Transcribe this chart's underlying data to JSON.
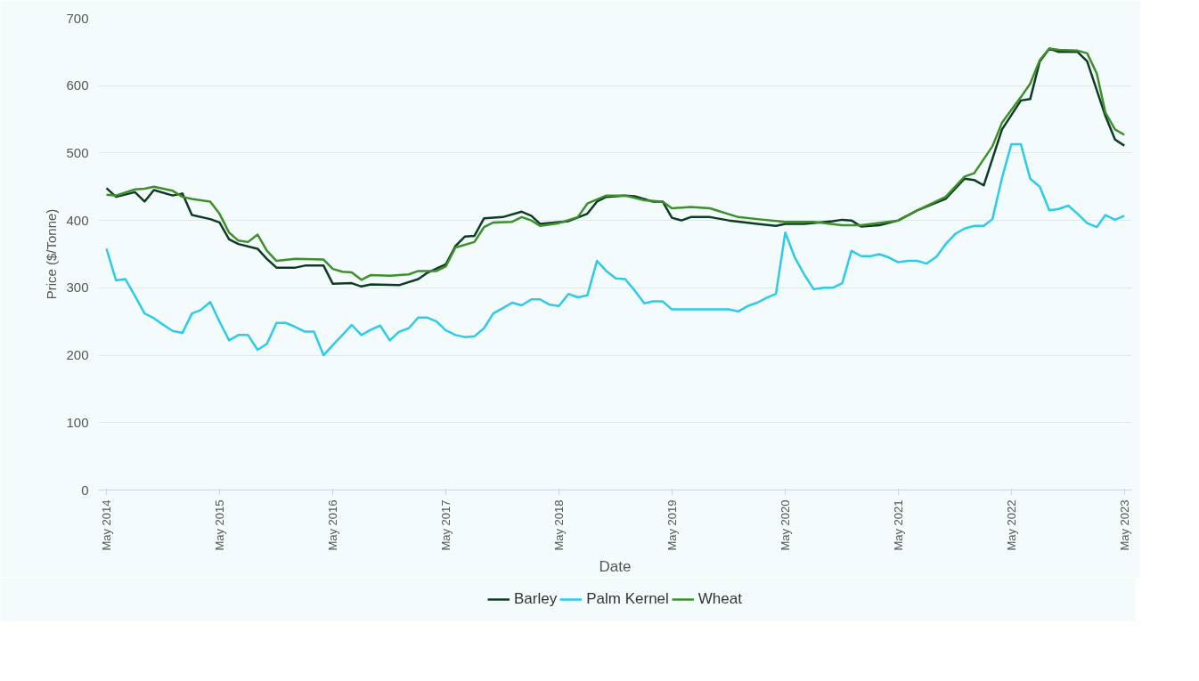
{
  "chart_data": {
    "type": "line",
    "xlabel": "Date",
    "ylabel": "Price ($/Tonne)",
    "xlim": [
      "2014-04-05",
      "2023-05-25"
    ],
    "xticks": [
      {
        "value": "2014-05",
        "label": "May 2014"
      },
      {
        "value": "2015-05",
        "label": "May 2015"
      },
      {
        "value": "2016-05",
        "label": "May 2016"
      },
      {
        "value": "2017-05",
        "label": "May 2017"
      },
      {
        "value": "2018-05",
        "label": "May 2018"
      },
      {
        "value": "2019-05",
        "label": "May 2019"
      },
      {
        "value": "2020-05",
        "label": "May 2020"
      },
      {
        "value": "2021-05",
        "label": "May 2021"
      },
      {
        "value": "2022-05",
        "label": "May 2022"
      },
      {
        "value": "2023-05",
        "label": "May 2023"
      }
    ],
    "ylim": [
      0,
      700
    ],
    "yticks": [
      0,
      100,
      200,
      300,
      400,
      500,
      600,
      700
    ],
    "grid": "y",
    "legend": "bottom",
    "marker": "none",
    "line_style": "solid",
    "series": [
      {
        "name": "Barley",
        "color": "#0d3b24",
        "x": [
          "2014-05",
          "2014-06",
          "2014-08",
          "2014-09",
          "2014-10",
          "2014-12",
          "2015-01",
          "2015-02",
          "2015-04",
          "2015-05",
          "2015-06",
          "2015-07",
          "2015-09",
          "2015-10",
          "2015-11",
          "2016-01",
          "2016-02",
          "2016-04",
          "2016-05",
          "2016-07",
          "2016-08",
          "2016-09",
          "2016-12",
          "2017-02",
          "2017-03",
          "2017-05",
          "2017-06",
          "2017-07",
          "2017-08",
          "2017-09",
          "2017-11",
          "2018-01",
          "2018-02",
          "2018-03",
          "2018-06",
          "2018-08",
          "2018-09",
          "2018-10",
          "2018-12",
          "2019-01",
          "2019-03",
          "2019-04",
          "2019-05",
          "2019-06",
          "2019-07",
          "2019-09",
          "2019-11",
          "2020-02",
          "2020-04",
          "2020-05",
          "2020-07",
          "2020-10",
          "2020-11",
          "2020-12",
          "2021-01",
          "2021-03",
          "2021-05",
          "2021-07",
          "2021-10",
          "2021-12",
          "2022-01",
          "2022-02",
          "2022-04",
          "2022-06",
          "2022-07",
          "2022-08",
          "2022-09",
          "2022-10",
          "2022-12",
          "2023-01",
          "2023-03",
          "2023-04",
          "2023-05"
        ],
        "values": [
          448,
          435,
          442,
          428,
          445,
          437,
          440,
          408,
          402,
          397,
          372,
          365,
          358,
          343,
          330,
          330,
          333,
          333,
          306,
          307,
          302,
          305,
          304,
          313,
          322,
          335,
          362,
          376,
          377,
          403,
          405,
          413,
          407,
          395,
          399,
          410,
          428,
          435,
          437,
          436,
          428,
          428,
          404,
          400,
          405,
          405,
          400,
          395,
          392,
          395,
          395,
          399,
          401,
          400,
          391,
          393,
          400,
          415,
          432,
          462,
          460,
          452,
          535,
          578,
          580,
          636,
          655,
          650,
          650,
          636,
          555,
          520,
          511
        ]
      },
      {
        "name": "Palm Kernel",
        "color": "#2ccbe8",
        "x": [
          "2014-05",
          "2014-06",
          "2014-07",
          "2014-08",
          "2014-09",
          "2014-10",
          "2014-11",
          "2014-12",
          "2015-01",
          "2015-02",
          "2015-03",
          "2015-04",
          "2015-05",
          "2015-06",
          "2015-07",
          "2015-08",
          "2015-09",
          "2015-10",
          "2015-11",
          "2015-12",
          "2016-01",
          "2016-02",
          "2016-03",
          "2016-04",
          "2016-05",
          "2016-06",
          "2016-07",
          "2016-08",
          "2016-09",
          "2016-10",
          "2016-11",
          "2016-12",
          "2017-01",
          "2017-02",
          "2017-03",
          "2017-04",
          "2017-05",
          "2017-06",
          "2017-07",
          "2017-08",
          "2017-09",
          "2017-10",
          "2017-11",
          "2017-12",
          "2018-01",
          "2018-02",
          "2018-03",
          "2018-04",
          "2018-05",
          "2018-06",
          "2018-07",
          "2018-08",
          "2018-09",
          "2018-10",
          "2018-11",
          "2018-12",
          "2019-01",
          "2019-02",
          "2019-03",
          "2019-04",
          "2019-05",
          "2019-11",
          "2019-12",
          "2020-01",
          "2020-02",
          "2020-03",
          "2020-04",
          "2020-05",
          "2020-06",
          "2020-07",
          "2020-08",
          "2020-09",
          "2020-10",
          "2020-11",
          "2020-12",
          "2021-01",
          "2021-02",
          "2021-03",
          "2021-04",
          "2021-05",
          "2021-06",
          "2021-07",
          "2021-08",
          "2021-09",
          "2021-10",
          "2021-11",
          "2021-12",
          "2022-01",
          "2022-02",
          "2022-03",
          "2022-04",
          "2022-05",
          "2022-06",
          "2022-07",
          "2022-08",
          "2022-09",
          "2022-10",
          "2022-11",
          "2022-12",
          "2023-01",
          "2023-02",
          "2023-03",
          "2023-04",
          "2023-05"
        ],
        "values": [
          358,
          311,
          313,
          288,
          262,
          255,
          245,
          236,
          233,
          262,
          267,
          279,
          250,
          222,
          230,
          230,
          208,
          217,
          248,
          248,
          242,
          235,
          235,
          200,
          215,
          230,
          245,
          230,
          238,
          244,
          222,
          235,
          240,
          256,
          256,
          250,
          237,
          230,
          227,
          228,
          240,
          262,
          270,
          278,
          274,
          283,
          283,
          275,
          273,
          291,
          286,
          289,
          340,
          325,
          314,
          313,
          296,
          277,
          280,
          280,
          268,
          268,
          265,
          273,
          278,
          285,
          291,
          382,
          345,
          320,
          298,
          300,
          300,
          307,
          355,
          347,
          347,
          350,
          345,
          338,
          340,
          340,
          336,
          346,
          365,
          380,
          388,
          392,
          392,
          402,
          463,
          513,
          513,
          462,
          450,
          415,
          417,
          422,
          410,
          396,
          390,
          408,
          401,
          407
        ]
      },
      {
        "name": "Wheat",
        "color": "#3d8f2a",
        "x": [
          "2014-05",
          "2014-06",
          "2014-08",
          "2014-09",
          "2014-10",
          "2014-12",
          "2015-01",
          "2015-02",
          "2015-04",
          "2015-05",
          "2015-06",
          "2015-07",
          "2015-08",
          "2015-09",
          "2015-10",
          "2015-11",
          "2016-01",
          "2016-04",
          "2016-05",
          "2016-06",
          "2016-07",
          "2016-08",
          "2016-09",
          "2016-11",
          "2017-01",
          "2017-02",
          "2017-04",
          "2017-05",
          "2017-06",
          "2017-08",
          "2017-09",
          "2017-10",
          "2017-12",
          "2018-01",
          "2018-02",
          "2018-03",
          "2018-05",
          "2018-07",
          "2018-08",
          "2018-10",
          "2018-12",
          "2019-02",
          "2019-04",
          "2019-05",
          "2019-07",
          "2019-09",
          "2019-12",
          "2020-02",
          "2020-05",
          "2020-08",
          "2020-11",
          "2021-01",
          "2021-05",
          "2021-07",
          "2021-10",
          "2021-12",
          "2022-01",
          "2022-03",
          "2022-04",
          "2022-06",
          "2022-07",
          "2022-08",
          "2022-09",
          "2022-10",
          "2022-12",
          "2023-01",
          "2023-02",
          "2023-03",
          "2023-04",
          "2023-05"
        ],
        "values": [
          438,
          437,
          446,
          447,
          450,
          444,
          435,
          432,
          428,
          410,
          382,
          370,
          368,
          379,
          355,
          340,
          343,
          342,
          328,
          324,
          323,
          312,
          319,
          318,
          320,
          325,
          325,
          332,
          360,
          368,
          390,
          397,
          398,
          405,
          400,
          392,
          396,
          405,
          425,
          437,
          437,
          430,
          428,
          418,
          420,
          418,
          405,
          402,
          398,
          398,
          393,
          393,
          400,
          415,
          435,
          465,
          470,
          510,
          545,
          583,
          603,
          638,
          655,
          653,
          652,
          648,
          618,
          560,
          535,
          527
        ]
      }
    ]
  }
}
